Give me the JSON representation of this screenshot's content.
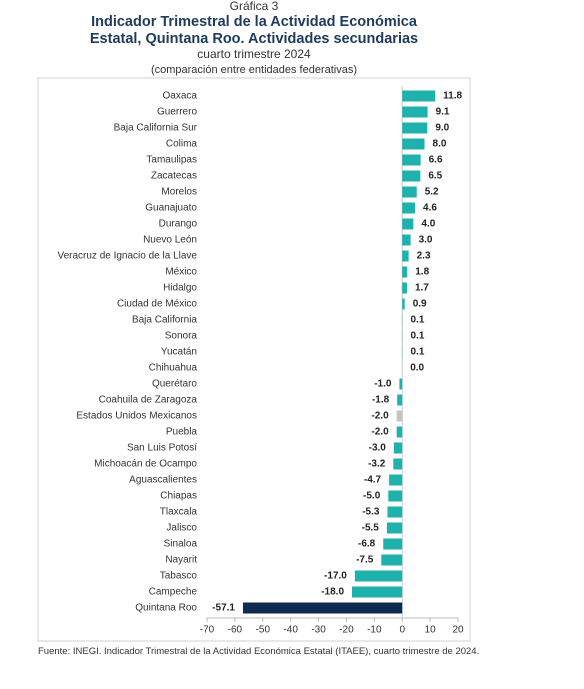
{
  "chart_data": {
    "type": "bar",
    "orientation": "horizontal",
    "label": "Gráfica 3",
    "title": [
      "Indicador Trimestral de la Actividad Económica",
      "Estatal, Quintana Roo. Actividades secundarias"
    ],
    "subtitle": "cuarto trimestre 2024",
    "note": "(comparación entre entidades federativas)",
    "source": "Fuente: INEGI. Indicador Trimestral de la Actividad Económica Estatal (ITAEE), cuarto trimestre de 2024.",
    "categories": [
      "Oaxaca",
      "Guerrero",
      "Baja California Sur",
      "Colima",
      "Tamaulipas",
      "Zacatecas",
      "Morelos",
      "Guanajuato",
      "Durango",
      "Nuevo León",
      "Veracruz de Ignacio de la Llave",
      "México",
      "Hidalgo",
      "Ciudad de México",
      "Baja California",
      "Sonora",
      "Yucatán",
      "Chihuahua",
      "Querétaro",
      "Coahuila de Zaragoza",
      "Estados Unidos Mexicanos",
      "Puebla",
      "San Luis Potosí",
      "Michoacán de Ocampo",
      "Aguascalientes",
      "Chiapas",
      "Tlaxcala",
      "Jalisco",
      "Sinaloa",
      "Nayarit",
      "Tabasco",
      "Campeche",
      "Quintana Roo"
    ],
    "values": [
      11.8,
      9.1,
      9.0,
      8.0,
      6.6,
      6.5,
      5.2,
      4.6,
      4.0,
      3.0,
      2.3,
      1.8,
      1.7,
      0.9,
      0.1,
      0.1,
      0.1,
      0.0,
      -1.0,
      -1.8,
      -2.0,
      -2.0,
      -3.0,
      -3.2,
      -4.7,
      -5.0,
      -5.3,
      -5.5,
      -6.8,
      -7.5,
      -17.0,
      -18.0,
      -57.1
    ],
    "value_labels": [
      "11.8",
      "9.1",
      "9.0",
      "8.0",
      "6.6",
      "6.5",
      "5.2",
      "4.6",
      "4.0",
      "3.0",
      "2.3",
      "1.8",
      "1.7",
      "0.9",
      "0.1",
      "0.1",
      "0.1",
      "0.0",
      "-1.0",
      "-1.8",
      "-2.0",
      "-2.0",
      "-3.0",
      "-3.2",
      "-4.7",
      "-5.0",
      "-5.3",
      "-5.5",
      "-6.8",
      "-7.5",
      "-17.0",
      "-18.0",
      "-57.1"
    ],
    "colors": [
      "#1fb1ac",
      "#1fb1ac",
      "#1fb1ac",
      "#1fb1ac",
      "#1fb1ac",
      "#1fb1ac",
      "#1fb1ac",
      "#1fb1ac",
      "#1fb1ac",
      "#1fb1ac",
      "#1fb1ac",
      "#1fb1ac",
      "#1fb1ac",
      "#1fb1ac",
      "#1fb1ac",
      "#1fb1ac",
      "#1fb1ac",
      "#1fb1ac",
      "#1fb1ac",
      "#1fb1ac",
      "#c4c4c4",
      "#1fb1ac",
      "#1fb1ac",
      "#1fb1ac",
      "#1fb1ac",
      "#1fb1ac",
      "#1fb1ac",
      "#1fb1ac",
      "#1fb1ac",
      "#1fb1ac",
      "#1fb1ac",
      "#1fb1ac",
      "#0d2b4e"
    ],
    "xlim": [
      -70,
      20
    ],
    "xticks": [
      -70,
      -60,
      -50,
      -40,
      -30,
      -20,
      -10,
      0,
      10,
      20
    ]
  }
}
